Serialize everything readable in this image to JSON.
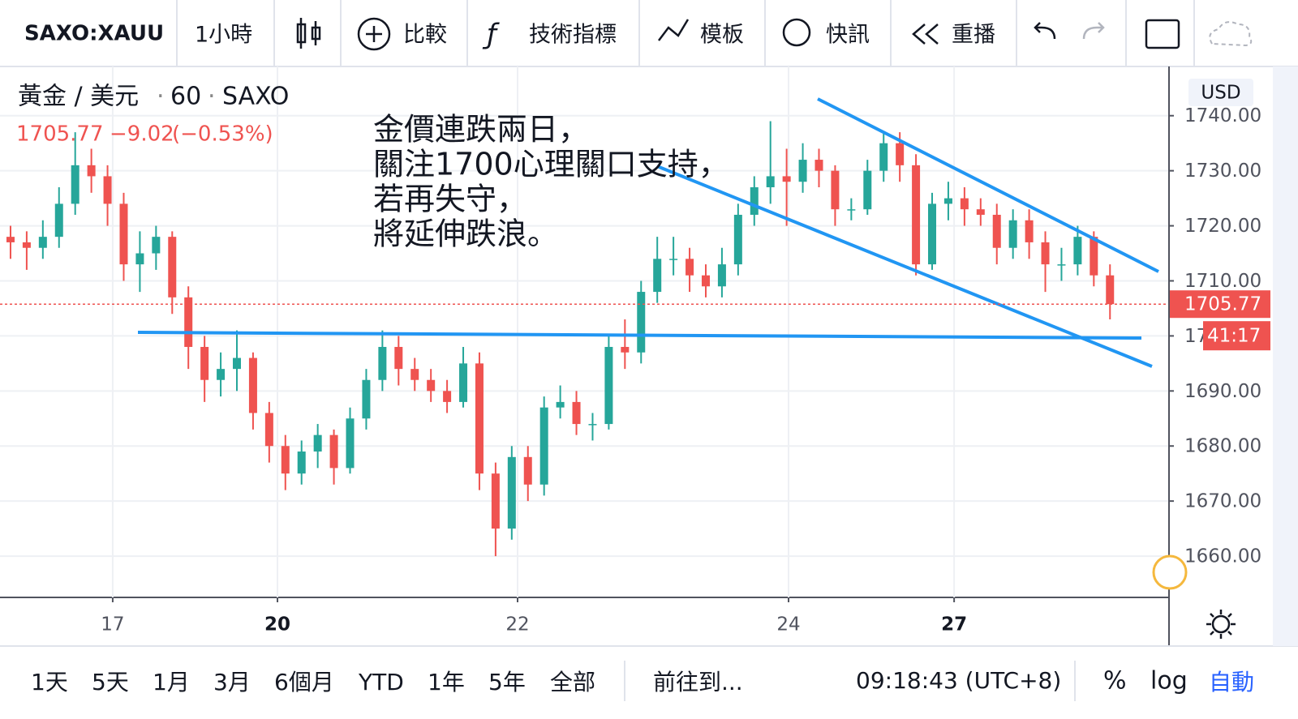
{
  "toolbar": {
    "symbol": "SAXO:XAUU",
    "interval": "1小時",
    "compare": "比較",
    "indicators": "技術指標",
    "templates": "模板",
    "alerts": "快訊",
    "replay": "重播"
  },
  "legend": {
    "title": "黃金 / 美元",
    "interval": "60",
    "source": "SAXO",
    "price": "1705.77",
    "change": "−9.02",
    "change_pct": "(−0.53%)"
  },
  "chart_data": {
    "type": "candlestick",
    "currency": "USD",
    "annotation": [
      "金價連跌兩日，",
      "關注1700心理關口支持，",
      "若再失守，",
      "將延伸跌浪。"
    ],
    "x": [
      0,
      1,
      2,
      3,
      4,
      5,
      6,
      7,
      8,
      9,
      10,
      11,
      12,
      13,
      14,
      15,
      16,
      17,
      18,
      19,
      20,
      21,
      22,
      23,
      24,
      25,
      26,
      27,
      28,
      29,
      30,
      31,
      32,
      33,
      34,
      35,
      36,
      37,
      38,
      39,
      40,
      41,
      42,
      43,
      44,
      45,
      46,
      47,
      48,
      49,
      50,
      51,
      52,
      53,
      54,
      55,
      56,
      57,
      58,
      59,
      60,
      61,
      62,
      63,
      64,
      65,
      66,
      67,
      68
    ],
    "open": [
      1718,
      1717,
      1716,
      1718,
      1724,
      1731,
      1729,
      1724,
      1713,
      1715,
      1718,
      1707,
      1698,
      1692,
      1694,
      1696,
      1686,
      1680,
      1675,
      1679,
      1682,
      1676,
      1685,
      1692,
      1698,
      1694,
      1692,
      1690,
      1688,
      1695,
      1675,
      1665,
      1678,
      1673,
      1687,
      1688,
      1684,
      1684,
      1698,
      1697,
      1708,
      1714,
      1714,
      1711,
      1709,
      1713,
      1722,
      1727,
      1729,
      1728,
      1732,
      1730,
      1723,
      1723,
      1730,
      1735,
      1731,
      1713,
      1724,
      1725,
      1723,
      1722,
      1716,
      1721,
      1717,
      1713,
      1713,
      1718,
      1711
    ],
    "high": [
      1720,
      1719,
      1721,
      1727,
      1737,
      1734,
      1731,
      1726,
      1719,
      1720,
      1719,
      1709,
      1700,
      1697,
      1701,
      1697,
      1688,
      1682,
      1681,
      1684,
      1683,
      1687,
      1694,
      1701,
      1700,
      1696,
      1694,
      1692,
      1698,
      1697,
      1677,
      1680,
      1680,
      1689,
      1691,
      1690,
      1686,
      1700,
      1703,
      1710,
      1718,
      1718,
      1716,
      1713,
      1716,
      1724,
      1729,
      1739,
      1734,
      1735,
      1734,
      1731,
      1725,
      1732,
      1737,
      1737,
      1733,
      1726,
      1728,
      1727,
      1725,
      1724,
      1723,
      1723,
      1719,
      1716,
      1720,
      1719,
      1713
    ],
    "low": [
      1714,
      1712,
      1714,
      1716,
      1722,
      1726,
      1720,
      1710,
      1708,
      1712,
      1704,
      1694,
      1688,
      1689,
      1690,
      1683,
      1677,
      1672,
      1673,
      1676,
      1673,
      1675,
      1683,
      1690,
      1691,
      1690,
      1688,
      1686,
      1687,
      1672,
      1660,
      1663,
      1670,
      1671,
      1685,
      1682,
      1681,
      1683,
      1694,
      1695,
      1706,
      1711,
      1708,
      1707,
      1707,
      1711,
      1720,
      1724,
      1720,
      1726,
      1727,
      1720,
      1721,
      1722,
      1728,
      1728,
      1711,
      1712,
      1721,
      1720,
      1720,
      1713,
      1714,
      1714,
      1708,
      1710,
      1711,
      1709,
      1703
    ],
    "close": [
      1717,
      1716,
      1718,
      1724,
      1731,
      1729,
      1724,
      1713,
      1715,
      1718,
      1707,
      1698,
      1692,
      1694,
      1696,
      1686,
      1680,
      1675,
      1679,
      1682,
      1676,
      1685,
      1692,
      1698,
      1694,
      1692,
      1690,
      1688,
      1695,
      1675,
      1665,
      1678,
      1673,
      1687,
      1688,
      1684,
      1684,
      1698,
      1697,
      1708,
      1714,
      1714,
      1711,
      1709,
      1713,
      1722,
      1727,
      1729,
      1728,
      1732,
      1730,
      1723,
      1723,
      1730,
      1735,
      1731,
      1713,
      1724,
      1725,
      1723,
      1722,
      1716,
      1721,
      1717,
      1713,
      1713,
      1718,
      1711,
      1705.77
    ],
    "up_color": "#26a69a",
    "down_color": "#ef5350",
    "xlim": [
      -0.4,
      71.6
    ],
    "xticks": [
      {
        "value": 6.32,
        "label": "17",
        "bold": false
      },
      {
        "value": 16.51,
        "label": "20",
        "bold": true
      },
      {
        "value": 31.36,
        "label": "22",
        "bold": false
      },
      {
        "value": 48.12,
        "label": "24",
        "bold": false
      },
      {
        "value": 58.36,
        "label": "27",
        "bold": true
      }
    ],
    "ylim": [
      1652.5,
      1748.5
    ],
    "yticks": [
      {
        "value": 1660,
        "label": "1660.00"
      },
      {
        "value": 1670,
        "label": "1670.00"
      },
      {
        "value": 1680,
        "label": "1680.00"
      },
      {
        "value": 1690,
        "label": "1690.00"
      },
      {
        "value": 1700,
        "label": "1700.00"
      },
      {
        "value": 1710,
        "label": "1710.00"
      },
      {
        "value": 1720,
        "label": "1720.00"
      },
      {
        "value": 1730,
        "label": "1730.00"
      },
      {
        "value": 1740,
        "label": "1740.00"
      }
    ],
    "grid": true,
    "last_price_label": "1705.77",
    "countdown": "41:17"
  },
  "bottom_bar": {
    "ranges": [
      "1天",
      "5天",
      "1月",
      "3月",
      "6個月",
      "YTD",
      "1年",
      "5年",
      "全部"
    ],
    "goto": "前往到...",
    "clock": "09:18:43 (UTC+8)",
    "percent": "%",
    "log": "log",
    "auto": "自動"
  }
}
